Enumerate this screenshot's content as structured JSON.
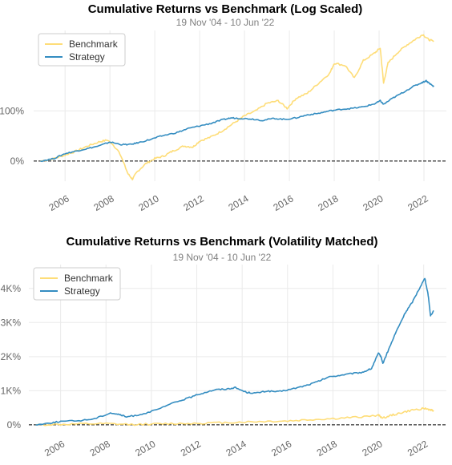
{
  "colors": {
    "benchmark": "#fedd78",
    "strategy": "#348dc1",
    "grid": "#eaeaea",
    "zero_line": "#000000"
  },
  "chart_data": [
    {
      "type": "line",
      "title": "Cumulative Returns vs Benchmark (Log Scaled)",
      "subtitle": "19 Nov '04 - 10 Jun '22",
      "xlabel": "",
      "ylabel": "",
      "y_scale": "log",
      "xlim": [
        2004.6,
        2023.0
      ],
      "ylim": [
        -0.4,
        2.6
      ],
      "x_tick_labels": [
        "2006",
        "2008",
        "2010",
        "2012",
        "2014",
        "2016",
        "2018",
        "2020",
        "2022"
      ],
      "y_ticks": [
        0,
        1.0
      ],
      "y_tick_labels": [
        "0%",
        "100%"
      ],
      "legend": {
        "position": "top-left",
        "entries": [
          "Benchmark",
          "Strategy"
        ]
      },
      "grid": true,
      "series": [
        {
          "name": "Benchmark",
          "x": [
            2004.9,
            2005.5,
            2006,
            2006.5,
            2007,
            2007.5,
            2007.9,
            2008.4,
            2008.8,
            2009.0,
            2009.2,
            2009.6,
            2010,
            2010.4,
            2010.8,
            2011.3,
            2011.7,
            2012,
            2012.5,
            2013,
            2013.5,
            2014,
            2014.5,
            2015,
            2015.5,
            2015.9,
            2016.3,
            2016.8,
            2017.3,
            2017.8,
            2018.0,
            2018.5,
            2018.9,
            2019.3,
            2019.8,
            2020.05,
            2020.2,
            2020.4,
            2020.8,
            2021.2,
            2021.6,
            2021.95,
            2022.2,
            2022.44
          ],
          "y": [
            0.0,
            0.05,
            0.12,
            0.2,
            0.3,
            0.38,
            0.42,
            0.2,
            -0.25,
            -0.36,
            -0.22,
            -0.05,
            0.05,
            0.1,
            0.2,
            0.3,
            0.28,
            0.4,
            0.48,
            0.6,
            0.75,
            0.9,
            1.0,
            1.15,
            1.2,
            1.05,
            1.25,
            1.35,
            1.55,
            1.75,
            1.95,
            1.9,
            1.65,
            2.0,
            2.15,
            2.25,
            1.55,
            1.95,
            2.15,
            2.3,
            2.42,
            2.52,
            2.42,
            2.38
          ]
        },
        {
          "name": "Strategy",
          "x": [
            2004.9,
            2005.5,
            2006,
            2006.5,
            2007,
            2007.5,
            2008,
            2008.5,
            2008.9,
            2009.3,
            2009.8,
            2010.3,
            2011,
            2011.5,
            2012,
            2012.5,
            2013,
            2013.4,
            2013.8,
            2014.3,
            2014.8,
            2015.3,
            2015.8,
            2016.3,
            2016.8,
            2017.3,
            2017.8,
            2018.3,
            2018.8,
            2019.3,
            2019.8,
            2020.05,
            2020.2,
            2020.6,
            2021,
            2021.5,
            2021.9,
            2022.1,
            2022.3,
            2022.44
          ],
          "y": [
            0.0,
            0.05,
            0.15,
            0.2,
            0.25,
            0.3,
            0.38,
            0.33,
            0.33,
            0.37,
            0.43,
            0.5,
            0.57,
            0.65,
            0.7,
            0.75,
            0.82,
            0.86,
            0.85,
            0.84,
            0.81,
            0.85,
            0.83,
            0.86,
            0.92,
            0.95,
            1.0,
            1.03,
            1.05,
            1.08,
            1.14,
            1.2,
            1.13,
            1.25,
            1.35,
            1.48,
            1.56,
            1.6,
            1.53,
            1.48
          ]
        }
      ]
    },
    {
      "type": "line",
      "title": "Cumulative Returns vs Benchmark (Volatility Matched)",
      "subtitle": "19 Nov '04 - 10 Jun '22",
      "xlabel": "",
      "ylabel": "",
      "xlim": [
        2004.6,
        2023.0
      ],
      "ylim": [
        -0.5,
        47
      ],
      "x_tick_labels": [
        "2006",
        "2008",
        "2010",
        "2012",
        "2014",
        "2016",
        "2018",
        "2020",
        "2022"
      ],
      "y_ticks": [
        0,
        10,
        20,
        30,
        40
      ],
      "y_tick_labels": [
        "0%",
        "1K%",
        "2K%",
        "3K%",
        "4K%"
      ],
      "legend": {
        "position": "top-left",
        "entries": [
          "Benchmark",
          "Strategy"
        ]
      },
      "grid": true,
      "series": [
        {
          "name": "Benchmark",
          "x": [
            2004.9,
            2006,
            2007,
            2008,
            2009,
            2010,
            2011,
            2012,
            2013,
            2014,
            2015,
            2016,
            2017,
            2018,
            2019,
            2020,
            2020.2,
            2020.6,
            2021,
            2021.5,
            2022,
            2022.3,
            2022.44
          ],
          "y": [
            0,
            0.1,
            0.25,
            0.3,
            0.1,
            0.2,
            0.35,
            0.45,
            0.6,
            0.8,
            1.0,
            1.1,
            1.5,
            1.8,
            2.2,
            2.8,
            2.0,
            2.8,
            3.5,
            4.3,
            4.8,
            4.4,
            4.0
          ]
        },
        {
          "name": "Strategy",
          "x": [
            2004.9,
            2005.5,
            2006,
            2006.8,
            2007.5,
            2008.2,
            2008.6,
            2008.9,
            2009.5,
            2010.2,
            2011,
            2011.6,
            2012.2,
            2012.8,
            2013.3,
            2013.7,
            2014.2,
            2014.6,
            2015.1,
            2015.6,
            2016.2,
            2016.8,
            2017.3,
            2017.8,
            2018.3,
            2018.8,
            2019.3,
            2019.7,
            2020.0,
            2020.12,
            2020.2,
            2020.45,
            2020.8,
            2021.2,
            2021.5,
            2021.85,
            2022.05,
            2022.2,
            2022.3,
            2022.44
          ],
          "y": [
            0,
            0.5,
            1.0,
            1.2,
            1.8,
            3.5,
            3.0,
            2.3,
            3.0,
            4.3,
            6.5,
            7.8,
            9.2,
            10.3,
            10.5,
            10.9,
            9.5,
            9.3,
            9.9,
            9.7,
            10.5,
            11.5,
            12.6,
            14.0,
            14.5,
            15.0,
            15.4,
            16.5,
            21.0,
            20.0,
            18.0,
            22.0,
            27.5,
            33.0,
            36.0,
            40.5,
            43.0,
            38.0,
            32.0,
            33.5
          ]
        }
      ]
    }
  ]
}
